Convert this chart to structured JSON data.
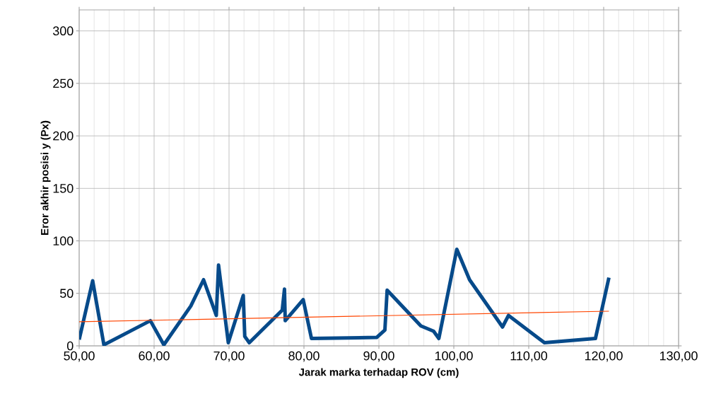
{
  "chart_data": {
    "type": "line",
    "xlabel": "Jarak marka terhadap ROV (cm)",
    "ylabel": "Eror akhir posisi y (Px)",
    "series": [
      {
        "color": "#064a8a",
        "x": [
          50.0,
          51.8,
          53.3,
          59.5,
          61.3,
          64.9,
          66.6,
          68.3,
          68.6,
          69.9,
          71.9,
          72.1,
          72.7,
          77.1,
          77.4,
          77.5,
          79.9,
          81.0,
          89.7,
          90.8,
          91.1,
          95.6,
          97.3,
          98.0,
          100.4,
          102.1,
          106.5,
          107.3,
          112.1,
          118.9,
          120.7
        ],
        "values": [
          6,
          62,
          1,
          24,
          1,
          38,
          63,
          29,
          77,
          3,
          48,
          9,
          3,
          34,
          54,
          24,
          44,
          7,
          8,
          15,
          53,
          19,
          14,
          7,
          92,
          63,
          18,
          29,
          3,
          7,
          65
        ]
      },
      {
        "type": "line",
        "color": "#ff4500",
        "x": [
          50.0,
          120.7
        ],
        "values": [
          23,
          33
        ]
      }
    ],
    "xlim": [
      50,
      130
    ],
    "ylim": [
      0,
      320
    ],
    "xticks": [
      {
        "value": 50,
        "label": "50,00"
      },
      {
        "value": 60,
        "label": "60,00"
      },
      {
        "value": 70,
        "label": "70,00"
      },
      {
        "value": 80,
        "label": "80,00"
      },
      {
        "value": 90,
        "label": "90,00"
      },
      {
        "value": 100,
        "label": "100,00"
      },
      {
        "value": 110,
        "label": "110,00"
      },
      {
        "value": 120,
        "label": "120,00"
      },
      {
        "value": 130,
        "label": "130,00"
      }
    ],
    "yticks": [
      0,
      50,
      100,
      150,
      200,
      250,
      300
    ],
    "grid": true,
    "marker": "none"
  }
}
